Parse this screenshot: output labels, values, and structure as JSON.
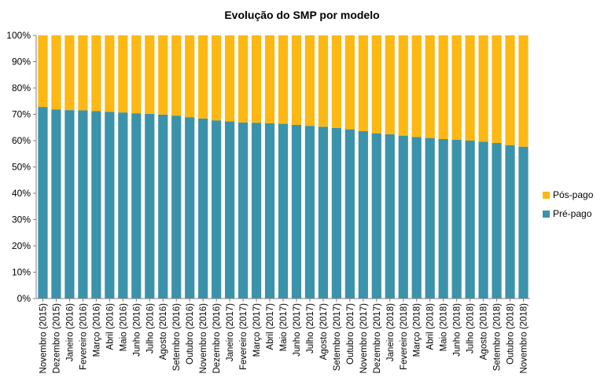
{
  "chart_data": {
    "type": "bar",
    "stacked": true,
    "percent": true,
    "title": "Evolução do SMP por modelo",
    "xlabel": "",
    "ylabel": "",
    "ylim": [
      0,
      100
    ],
    "yticks": [
      "0%",
      "10%",
      "20%",
      "30%",
      "40%",
      "50%",
      "60%",
      "70%",
      "80%",
      "90%",
      "100%"
    ],
    "grid": false,
    "legend_position": "right",
    "categories": [
      "Novembro (2015)",
      "Dezembro (2015)",
      "Janeiro (2016)",
      "Fevereiro (2016)",
      "Março (2016)",
      "Abril (2016)",
      "Maio (2016)",
      "Junho (2016)",
      "Julho (2016)",
      "Agosto (2016)",
      "Setembro (2016)",
      "Outubro (2016)",
      "Novembro (2016)",
      "Dezembro (2016)",
      "Janeiro (2017)",
      "Fevereiro (2017)",
      "Março (2017)",
      "Abril (2017)",
      "Maio (2017)",
      "Junho (2017)",
      "Julho (2017)",
      "Agosto (2017)",
      "Setembro (2017)",
      "Outubro (2017)",
      "Novembro (2017)",
      "Dezembro (2017)",
      "Janeiro (2018)",
      "Fevereiro (2018)",
      "Março (2018)",
      "Abril (2018)",
      "Maio (2018)",
      "Junho (2018)",
      "Julho (2018)",
      "Agosto (2018)",
      "Setembro (2018)",
      "Outubro (2018)",
      "Novembro (2018)"
    ],
    "series": [
      {
        "name": "Pré-pago",
        "color": "#3A93AA",
        "values": [
          72.8,
          71.8,
          71.6,
          71.5,
          71.2,
          70.9,
          70.7,
          70.4,
          70.2,
          69.9,
          69.5,
          68.9,
          68.4,
          67.7,
          67.3,
          66.9,
          66.8,
          66.6,
          66.4,
          66.0,
          65.6,
          65.3,
          64.8,
          64.3,
          63.6,
          62.8,
          62.4,
          61.9,
          61.4,
          61.0,
          60.6,
          60.3,
          60.0,
          59.6,
          59.1,
          58.3,
          57.7
        ]
      },
      {
        "name": "Pós-pago",
        "color": "#FDB813",
        "values": [
          27.2,
          28.2,
          28.4,
          28.5,
          28.8,
          29.1,
          29.3,
          29.6,
          29.8,
          30.1,
          30.5,
          31.1,
          31.6,
          32.3,
          32.7,
          33.1,
          33.2,
          33.4,
          33.6,
          34.0,
          34.4,
          34.7,
          35.2,
          35.7,
          36.4,
          37.2,
          37.6,
          38.1,
          38.6,
          39.0,
          39.4,
          39.7,
          40.0,
          40.4,
          40.9,
          41.7,
          42.3
        ]
      }
    ],
    "legend_order": [
      "Pós-pago",
      "Pré-pago"
    ]
  }
}
